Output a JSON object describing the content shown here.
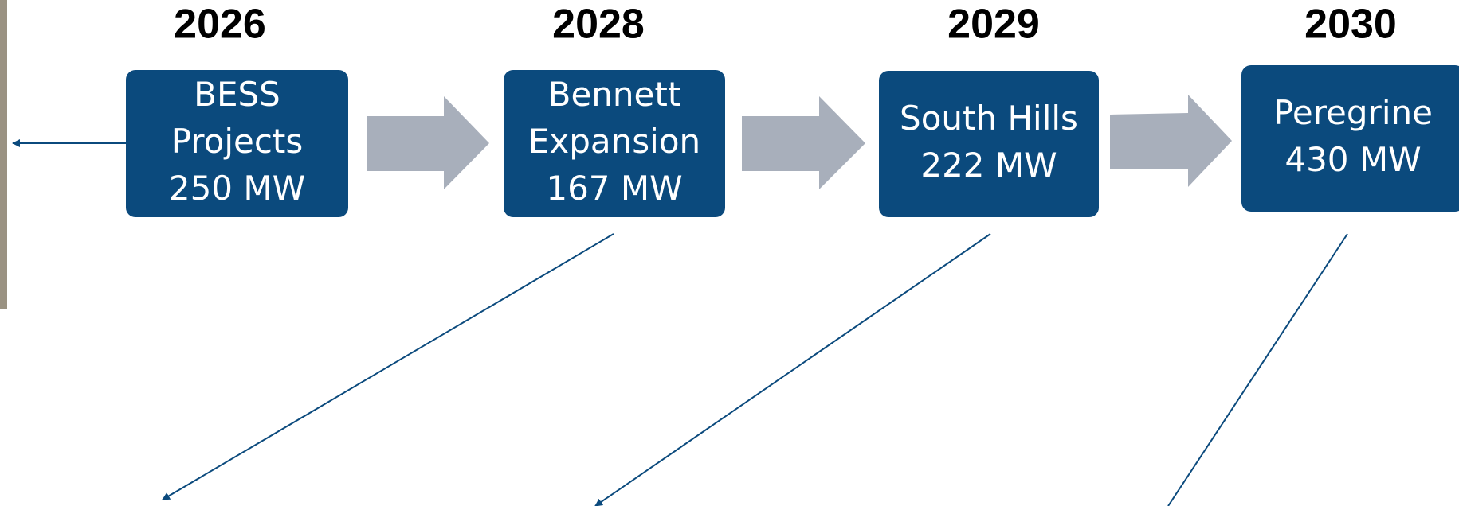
{
  "nodes": [
    {
      "year": "2026",
      "lines": [
        "BESS",
        "Projects",
        "250 MW"
      ]
    },
    {
      "year": "2028",
      "lines": [
        "Bennett",
        "Expansion",
        "167 MW"
      ]
    },
    {
      "year": "2029",
      "lines": [
        "South Hills",
        "222 MW"
      ]
    },
    {
      "year": "2030",
      "lines": [
        "Peregrine",
        "430 MW"
      ]
    }
  ]
}
